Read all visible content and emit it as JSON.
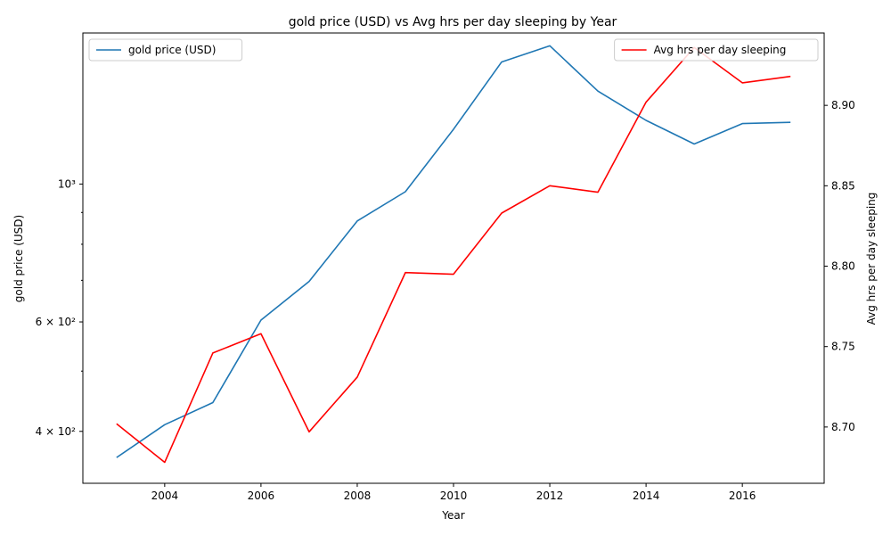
{
  "chart_data": {
    "type": "line",
    "title": "gold price (USD) vs Avg hrs per day sleeping by Year",
    "xlabel": "Year",
    "ylabel_left": "gold price (USD)",
    "ylabel_right": "Avg hrs per day sleeping",
    "x": [
      2003,
      2004,
      2005,
      2006,
      2007,
      2008,
      2009,
      2010,
      2011,
      2012,
      2013,
      2014,
      2015,
      2016,
      2017
    ],
    "xlim": [
      2002.3,
      2017.7
    ],
    "x_ticks": [
      2004,
      2006,
      2008,
      2010,
      2012,
      2014,
      2016
    ],
    "left_axis": {
      "scale": "log",
      "ylim": [
        330,
        1750
      ],
      "major_ticks": [
        {
          "value": 400,
          "label": "4 × 10²"
        },
        {
          "value": 600,
          "label": "6 × 10²"
        },
        {
          "value": 1000,
          "label": "10³"
        }
      ],
      "minor_ticks": [
        500,
        700,
        800,
        900
      ]
    },
    "right_axis": {
      "scale": "linear",
      "ylim": [
        8.665,
        8.945
      ],
      "ticks": [
        8.7,
        8.75,
        8.8,
        8.85,
        8.9
      ]
    },
    "series": [
      {
        "name": "gold price (USD)",
        "axis": "left",
        "color": "#1f77b4",
        "values": [
          363,
          410,
          445,
          604,
          697,
          872,
          972,
          1225,
          1572,
          1669,
          1411,
          1266,
          1160,
          1251,
          1257
        ]
      },
      {
        "name": "Avg hrs per day sleeping",
        "axis": "right",
        "color": "#ff0000",
        "values": [
          8.702,
          8.678,
          8.746,
          8.758,
          8.697,
          8.731,
          8.796,
          8.795,
          8.833,
          8.85,
          8.846,
          8.902,
          8.936,
          8.914,
          8.918
        ]
      }
    ],
    "legend_left": "top-left",
    "legend_right": "top-right",
    "grid": false
  }
}
